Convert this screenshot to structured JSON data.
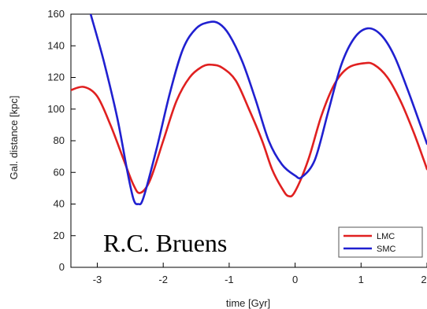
{
  "chart_data": {
    "type": "line",
    "title": "",
    "xlabel": "time [Gyr]",
    "ylabel": "Gal. distance [kpc]",
    "xlim": [
      -3.4,
      2.0
    ],
    "ylim": [
      0,
      160
    ],
    "x_ticks": [
      -3,
      -2,
      -1,
      0,
      1,
      2
    ],
    "y_ticks": [
      0,
      20,
      40,
      60,
      80,
      100,
      120,
      140,
      160
    ],
    "grid": false,
    "legend_position": "bottom-right",
    "annotation": "R.C. Bruens",
    "series": [
      {
        "name": "LMC",
        "color": "#e02020",
        "points": [
          [
            -3.4,
            112
          ],
          [
            -3.2,
            114
          ],
          [
            -3.0,
            108
          ],
          [
            -2.8,
            90
          ],
          [
            -2.6,
            68
          ],
          [
            -2.45,
            52
          ],
          [
            -2.35,
            47
          ],
          [
            -2.2,
            55
          ],
          [
            -2.0,
            80
          ],
          [
            -1.8,
            105
          ],
          [
            -1.6,
            120
          ],
          [
            -1.4,
            127
          ],
          [
            -1.25,
            128
          ],
          [
            -1.1,
            126
          ],
          [
            -0.9,
            118
          ],
          [
            -0.7,
            100
          ],
          [
            -0.5,
            80
          ],
          [
            -0.35,
            62
          ],
          [
            -0.2,
            50
          ],
          [
            -0.1,
            45
          ],
          [
            0.0,
            48
          ],
          [
            0.2,
            68
          ],
          [
            0.4,
            96
          ],
          [
            0.6,
            116
          ],
          [
            0.8,
            126
          ],
          [
            1.05,
            129
          ],
          [
            1.2,
            128
          ],
          [
            1.4,
            120
          ],
          [
            1.6,
            105
          ],
          [
            1.8,
            85
          ],
          [
            1.95,
            68
          ],
          [
            2.0,
            62
          ]
        ]
      },
      {
        "name": "SMC",
        "color": "#2020d0",
        "points": [
          [
            -3.1,
            160
          ],
          [
            -2.9,
            130
          ],
          [
            -2.7,
            95
          ],
          [
            -2.55,
            62
          ],
          [
            -2.45,
            43
          ],
          [
            -2.38,
            40
          ],
          [
            -2.3,
            44
          ],
          [
            -2.1,
            75
          ],
          [
            -1.9,
            110
          ],
          [
            -1.7,
            138
          ],
          [
            -1.5,
            151
          ],
          [
            -1.3,
            155
          ],
          [
            -1.15,
            154
          ],
          [
            -1.0,
            147
          ],
          [
            -0.8,
            130
          ],
          [
            -0.6,
            106
          ],
          [
            -0.4,
            80
          ],
          [
            -0.2,
            65
          ],
          [
            0.0,
            58
          ],
          [
            0.1,
            57
          ],
          [
            0.3,
            68
          ],
          [
            0.5,
            98
          ],
          [
            0.7,
            128
          ],
          [
            0.9,
            145
          ],
          [
            1.1,
            151
          ],
          [
            1.3,
            147
          ],
          [
            1.5,
            134
          ],
          [
            1.7,
            113
          ],
          [
            1.9,
            90
          ],
          [
            2.0,
            78
          ]
        ]
      }
    ]
  }
}
